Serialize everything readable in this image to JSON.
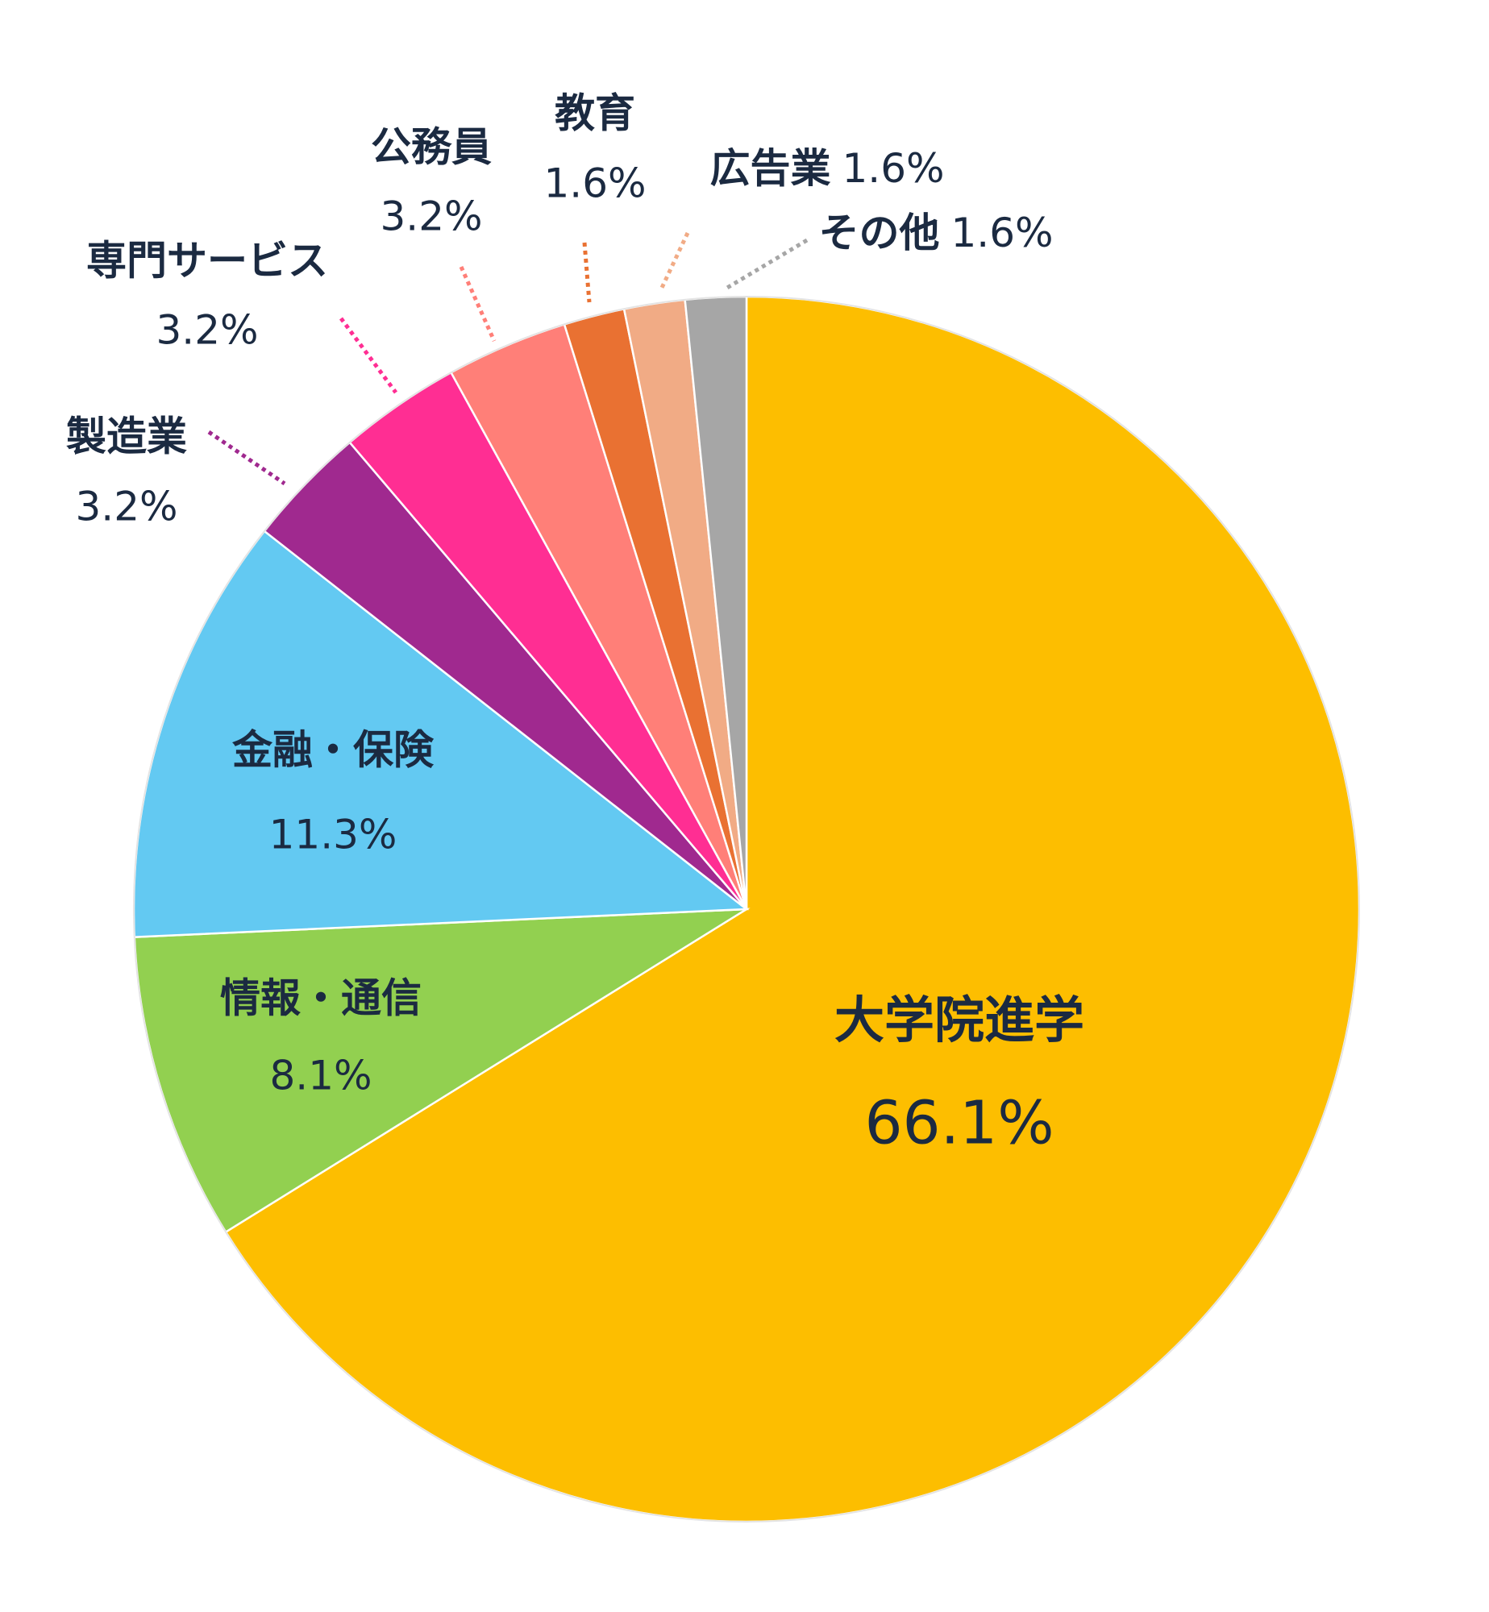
{
  "chart_data": {
    "type": "pie",
    "categories": [
      "大学院進学",
      "情報・通信",
      "金融・保険",
      "製造業",
      "専門サービス",
      "公務員",
      "教育",
      "広告業",
      "その他"
    ],
    "values": [
      66.1,
      8.1,
      11.3,
      3.2,
      3.2,
      3.2,
      1.6,
      1.6,
      1.6
    ],
    "value_labels": [
      "66.1%",
      "8.1%",
      "11.3%",
      "3.2%",
      "3.2%",
      "3.2%",
      "1.6%",
      "1.6%",
      "1.6%"
    ],
    "colors": [
      "#FDBE00",
      "#92D050",
      "#63C9F2",
      "#A0298F",
      "#FF2E93",
      "#FF7F78",
      "#E97132",
      "#F1AB85",
      "#A6A6A6"
    ]
  }
}
